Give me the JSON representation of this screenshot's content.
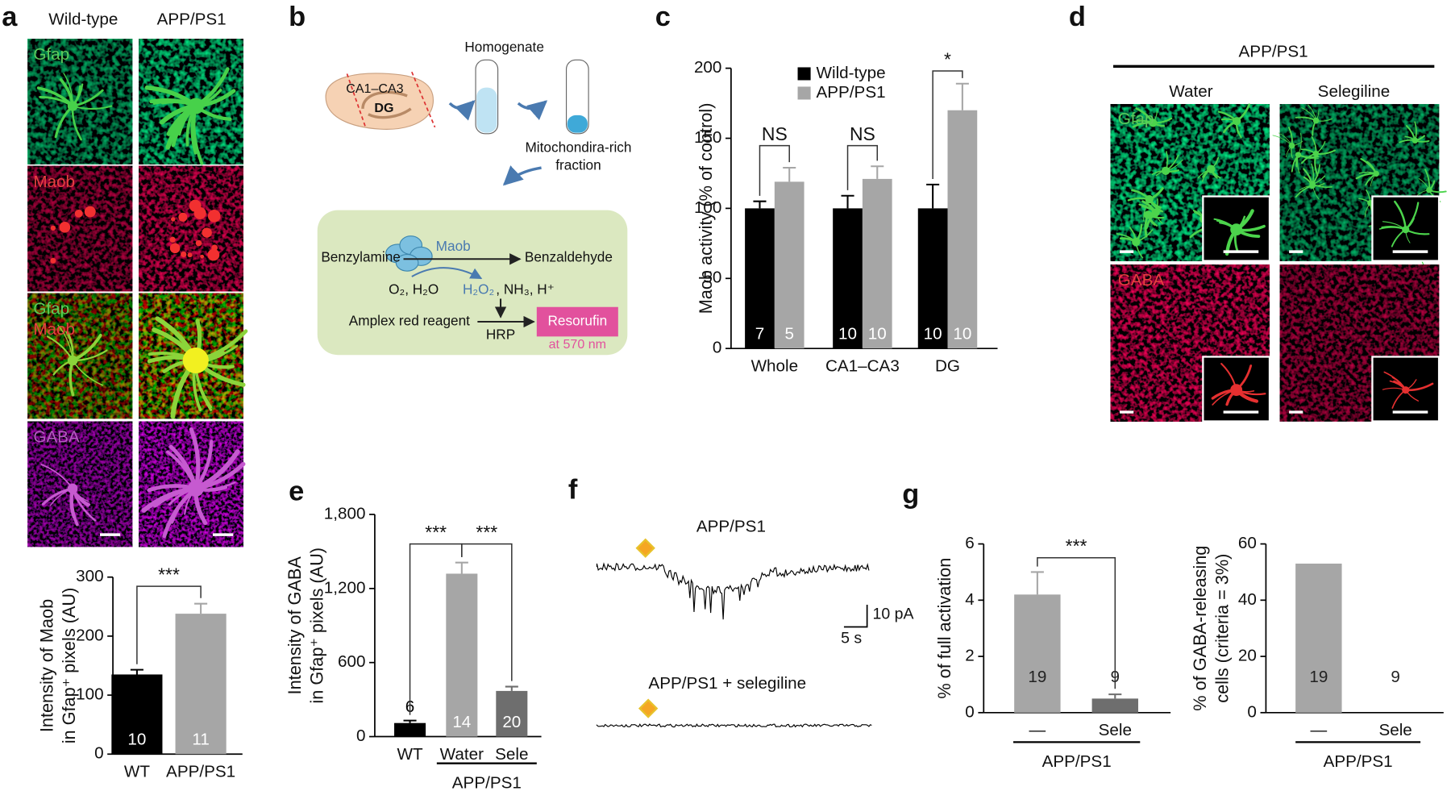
{
  "panel_labels": [
    "a",
    "b",
    "c",
    "d",
    "e",
    "f",
    "g"
  ],
  "panel_a": {
    "columns": [
      "Wild-type",
      "APP/PS1"
    ],
    "rows": [
      [
        "Gfap"
      ],
      [
        "Maob"
      ],
      [
        "Gfap",
        "Maob"
      ],
      [
        "GABA"
      ]
    ]
  },
  "panel_b": {
    "homogenate": "Homogenate",
    "regions": [
      "CA1–CA3",
      "DG"
    ],
    "fraction": [
      "Mitochondira-rich",
      "fraction"
    ],
    "enzyme": "Maob",
    "substrate": "Benzylamine",
    "product": "Benzaldehyde",
    "cosubstrates": "O₂, H₂O",
    "peroxide": "H₂O₂",
    "byproducts": ", NH₃, H⁺",
    "reagent": "Amplex red reagent",
    "catalyst": "HRP",
    "readout": "Resorufin",
    "wavelength": "at 570 nm"
  },
  "panel_d": {
    "group": "APP/PS1",
    "columns": [
      "Water",
      "Selegiline"
    ],
    "rows": [
      "Gfap",
      "GABA"
    ]
  },
  "panel_f": {
    "traces": [
      "APP/PS1",
      "APP/PS1 + selegiline"
    ],
    "scale_y": "10 pA",
    "scale_x": "5 s"
  },
  "chart_data": [
    {
      "type": "bar",
      "categories": [
        "WT",
        "APP/PS1"
      ],
      "values": [
        135,
        238
      ],
      "errors": [
        8,
        17
      ],
      "n_labels": [
        10,
        11
      ],
      "colors": [
        "#000000",
        "#a6a6a6"
      ],
      "ylim": [
        0,
        300
      ],
      "yticks": [
        0,
        100,
        200,
        300
      ],
      "ylabel": [
        "Intensity of Maob",
        "in Gfap⁺ pixels (AU)"
      ],
      "significance": [
        "***"
      ]
    },
    {
      "type": "grouped_bar",
      "categories": [
        "Whole",
        "CA1–CA3",
        "DG"
      ],
      "series": [
        {
          "name": "Wild-type",
          "color": "#000000",
          "values": [
            100,
            100,
            100
          ],
          "errors": [
            5,
            9,
            17
          ],
          "n_labels": [
            7,
            10,
            10
          ]
        },
        {
          "name": "APP/PS1",
          "color": "#a6a6a6",
          "values": [
            119,
            121,
            170
          ],
          "errors": [
            10,
            9,
            19
          ],
          "n_labels": [
            5,
            10,
            10
          ]
        }
      ],
      "ylim": [
        0,
        200
      ],
      "yticks": [
        0,
        50,
        100,
        150,
        200
      ],
      "ylabel": [
        "Maob activity (% of control)"
      ],
      "significance": [
        "NS",
        "NS",
        "*"
      ]
    },
    {
      "type": "bar",
      "categories": [
        "WT",
        "Water",
        "Sele"
      ],
      "values": [
        110,
        1320,
        370
      ],
      "errors": [
        20,
        90,
        35
      ],
      "n_labels": [
        6,
        14,
        20
      ],
      "colors": [
        "#000000",
        "#a6a6a6",
        "#6e6e6e"
      ],
      "ylim": [
        0,
        1800
      ],
      "yticks": [
        0,
        600,
        {
          "value": 1200,
          "label": "1,200"
        },
        {
          "value": 1800,
          "label": "1,800"
        }
      ],
      "ylabel": [
        "Intensity of GABA",
        "in Gfap⁺ pixels (AU)"
      ],
      "significance": [
        "***",
        "***"
      ],
      "group_label": "APP/PS1"
    },
    {
      "type": "bar",
      "categories": [
        "—",
        "Sele"
      ],
      "values": [
        4.2,
        0.5
      ],
      "errors": [
        0.8,
        0.15
      ],
      "n_labels": [
        19,
        9
      ],
      "colors": [
        "#a6a6a6",
        "#6e6e6e"
      ],
      "ylim": [
        0,
        6
      ],
      "yticks": [
        0,
        2,
        4,
        6
      ],
      "ylabel": [
        "% of full activation"
      ],
      "significance": [
        "***"
      ],
      "group_label": "APP/PS1"
    },
    {
      "type": "bar",
      "categories": [
        "—",
        "Sele"
      ],
      "values": [
        53,
        0
      ],
      "n_labels": [
        19,
        9
      ],
      "colors": [
        "#a6a6a6",
        "#6e6e6e"
      ],
      "ylim": [
        0,
        60
      ],
      "yticks": [
        0,
        20,
        40,
        60
      ],
      "ylabel": [
        "% of GABA-releasing",
        "cells (criteria = 3%)"
      ],
      "group_label": "APP/PS1"
    }
  ]
}
